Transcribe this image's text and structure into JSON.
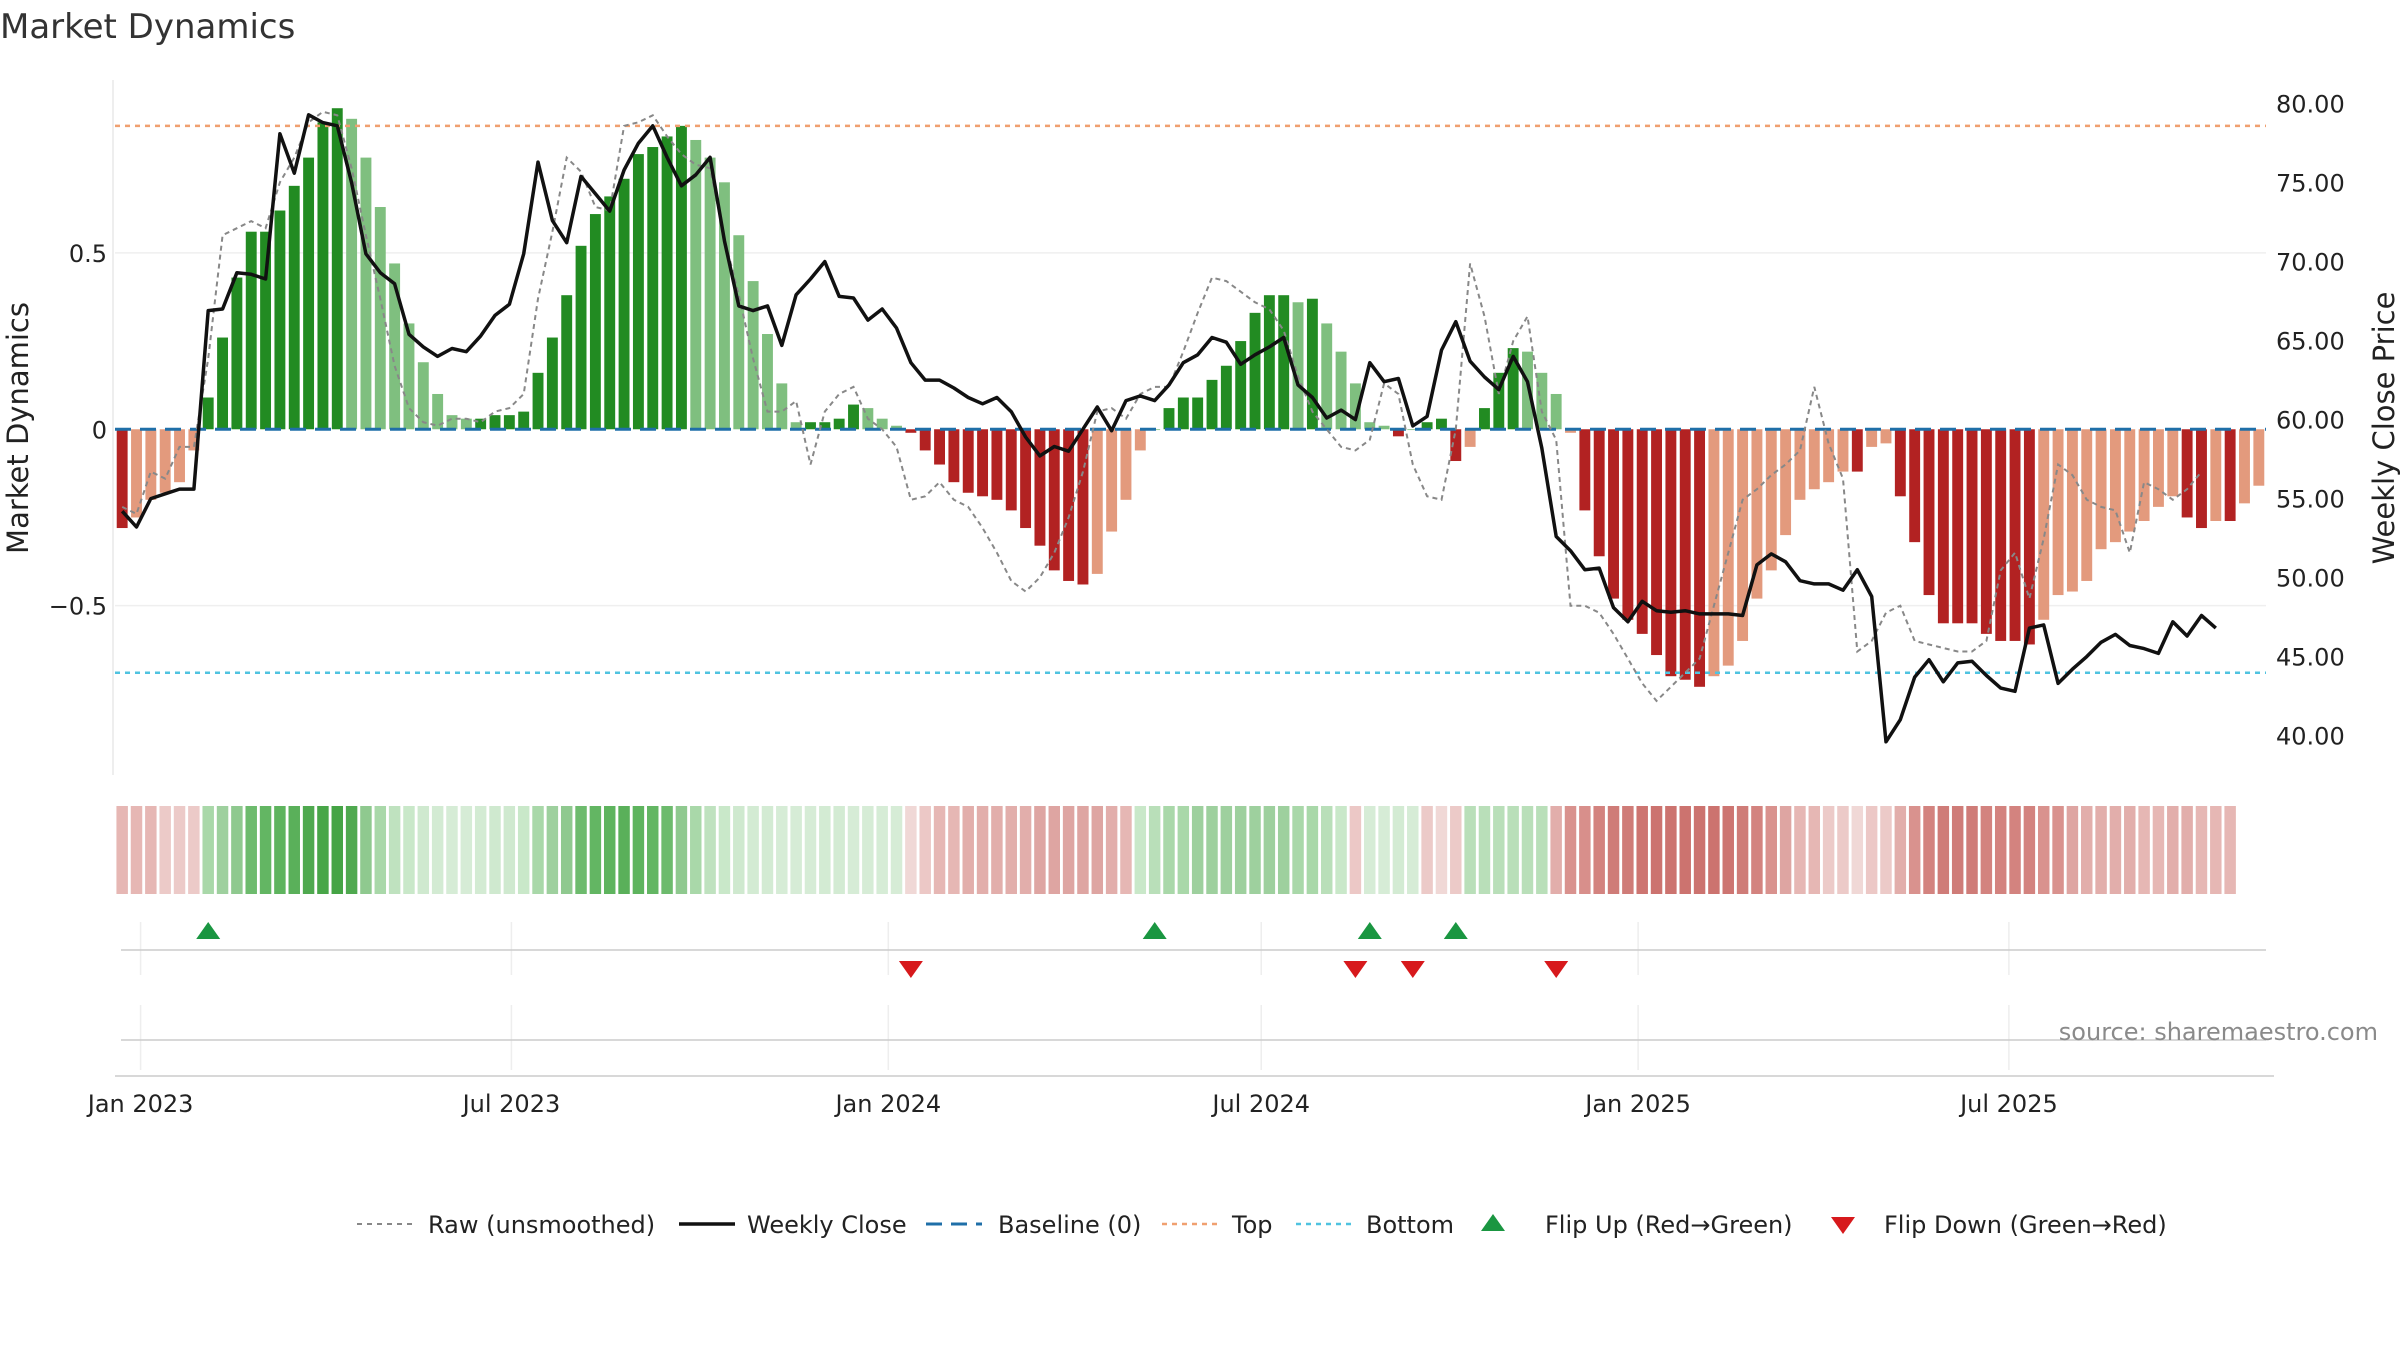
{
  "title": "Market Dynamics",
  "source": "source: sharemaestro.com",
  "axes": {
    "left_label": "Market Dynamics",
    "right_label": "Weekly Close Price",
    "left_ticks": [
      "0.5",
      "0",
      "−0.5"
    ],
    "left_tick_values": [
      0.5,
      0,
      -0.5
    ],
    "right_ticks": [
      "80.00",
      "75.00",
      "70.00",
      "65.00",
      "60.00",
      "55.00",
      "50.00",
      "45.00",
      "40.00"
    ],
    "right_tick_values": [
      80,
      75,
      70,
      65,
      60,
      55,
      50,
      45,
      40
    ],
    "date_ticks": [
      "Jan 2023",
      "Jul 2023",
      "Jan 2024",
      "Jul 2024",
      "Jan 2025",
      "Jul 2025"
    ]
  },
  "legend": {
    "raw": "Raw (unsmoothed)",
    "close": "Weekly Close",
    "baseline": "Baseline (0)",
    "top": "Top",
    "bottom": "Bottom",
    "flip_up": "Flip Up (Red→Green)",
    "flip_down": "Flip Down (Green→Red)"
  },
  "colors": {
    "green_strong": "#228b22",
    "green_light": "#7fbf7f",
    "red_strong": "#b22222",
    "red_light": "#e39a7d",
    "close": "#111111",
    "raw": "#888888",
    "baseline": "#1f6fa8",
    "top": "#f0a070",
    "bottom": "#4fc3e0",
    "flip_up": "#1a9641",
    "flip_down": "#d7191c"
  },
  "chart_data": {
    "type": "bar",
    "x_start": "2022-12-23",
    "x_step_days": 7,
    "top_level": 0.86,
    "bottom_level": -0.69,
    "baseline": 0,
    "left_ylim": [
      -0.98,
      0.99
    ],
    "right_ylim": [
      37.5,
      81.5
    ],
    "dynamics": [
      -0.28,
      -0.25,
      -0.2,
      -0.18,
      -0.15,
      -0.06,
      0.09,
      0.26,
      0.43,
      0.56,
      0.56,
      0.62,
      0.69,
      0.77,
      0.87,
      0.91,
      0.88,
      0.77,
      0.63,
      0.47,
      0.3,
      0.19,
      0.1,
      0.04,
      0.03,
      0.03,
      0.04,
      0.04,
      0.05,
      0.16,
      0.26,
      0.38,
      0.52,
      0.61,
      0.66,
      0.71,
      0.78,
      0.8,
      0.83,
      0.86,
      0.82,
      0.77,
      0.7,
      0.55,
      0.42,
      0.27,
      0.13,
      0.02,
      0.02,
      0.02,
      0.03,
      0.07,
      0.06,
      0.03,
      0.01,
      -0.01,
      -0.06,
      -0.1,
      -0.15,
      -0.18,
      -0.19,
      -0.2,
      -0.23,
      -0.28,
      -0.33,
      -0.4,
      -0.43,
      -0.44,
      -0.41,
      -0.29,
      -0.2,
      -0.06,
      0.0,
      0.06,
      0.09,
      0.09,
      0.14,
      0.18,
      0.25,
      0.33,
      0.38,
      0.38,
      0.36,
      0.37,
      0.3,
      0.22,
      0.13,
      0.02,
      0.01,
      -0.02,
      0.0,
      0.02,
      0.03,
      -0.09,
      -0.05,
      0.06,
      0.16,
      0.23,
      0.22,
      0.16,
      0.1,
      -0.01,
      -0.23,
      -0.36,
      -0.48,
      -0.54,
      -0.58,
      -0.64,
      -0.7,
      -0.71,
      -0.73,
      -0.7,
      -0.67,
      -0.6,
      -0.48,
      -0.4,
      -0.3,
      -0.2,
      -0.17,
      -0.15,
      -0.12,
      -0.12,
      -0.05,
      -0.04,
      -0.19,
      -0.32,
      -0.47,
      -0.55,
      -0.55,
      -0.55,
      -0.58,
      -0.6,
      -0.6,
      -0.61,
      -0.54,
      -0.47,
      -0.46,
      -0.43,
      -0.34,
      -0.32,
      -0.29,
      -0.26,
      -0.22,
      -0.19,
      -0.25,
      -0.28,
      -0.26,
      -0.26,
      -0.21,
      -0.16
    ],
    "raw": [
      -0.22,
      -0.24,
      -0.12,
      -0.14,
      -0.05,
      -0.05,
      0.2,
      0.55,
      0.57,
      0.59,
      0.57,
      0.7,
      0.77,
      0.87,
      0.9,
      0.89,
      0.74,
      0.55,
      0.37,
      0.18,
      0.06,
      0.02,
      0.01,
      0.03,
      0.03,
      0.02,
      0.05,
      0.06,
      0.1,
      0.37,
      0.56,
      0.77,
      0.73,
      0.63,
      0.62,
      0.86,
      0.87,
      0.89,
      0.83,
      0.78,
      0.75,
      0.74,
      0.54,
      0.38,
      0.2,
      0.05,
      0.05,
      0.08,
      -0.1,
      0.05,
      0.1,
      0.12,
      0.03,
      0.0,
      -0.05,
      -0.2,
      -0.19,
      -0.15,
      -0.2,
      -0.22,
      -0.28,
      -0.35,
      -0.43,
      -0.46,
      -0.42,
      -0.35,
      -0.25,
      -0.12,
      0.05,
      0.06,
      0.03,
      0.1,
      0.12,
      0.12,
      0.22,
      0.33,
      0.43,
      0.42,
      0.39,
      0.36,
      0.34,
      0.28,
      0.15,
      0.05,
      0.0,
      -0.05,
      -0.06,
      -0.03,
      0.13,
      0.1,
      -0.1,
      -0.19,
      -0.2,
      0.0,
      0.47,
      0.32,
      0.1,
      0.25,
      0.32,
      0.05,
      -0.03,
      -0.5,
      -0.5,
      -0.52,
      -0.58,
      -0.65,
      -0.72,
      -0.77,
      -0.73,
      -0.69,
      -0.65,
      -0.5,
      -0.35,
      -0.2,
      -0.17,
      -0.13,
      -0.1,
      -0.06,
      0.12,
      -0.04,
      -0.14,
      -0.63,
      -0.6,
      -0.52,
      -0.5,
      -0.6,
      -0.61,
      -0.62,
      -0.63,
      -0.63,
      -0.6,
      -0.4,
      -0.35,
      -0.48,
      -0.31,
      -0.1,
      -0.13,
      -0.2,
      -0.22,
      -0.23,
      -0.35,
      -0.15,
      -0.17,
      -0.2,
      -0.17,
      -0.12
    ],
    "close": [
      54.2,
      53.2,
      55.0,
      55.3,
      55.6,
      55.6,
      66.9,
      67.0,
      69.3,
      69.2,
      68.9,
      78.1,
      75.6,
      79.3,
      78.8,
      78.6,
      75.0,
      70.5,
      69.3,
      68.6,
      65.4,
      64.6,
      64.0,
      64.5,
      64.3,
      65.3,
      66.6,
      67.3,
      70.5,
      76.3,
      72.6,
      71.2,
      75.4,
      74.3,
      73.2,
      75.8,
      77.5,
      78.6,
      76.6,
      74.8,
      75.5,
      76.6,
      71.3,
      67.2,
      66.9,
      67.2,
      64.7,
      67.9,
      68.9,
      70.0,
      67.8,
      67.7,
      66.3,
      67.0,
      65.8,
      63.6,
      62.5,
      62.5,
      62.0,
      61.4,
      61.0,
      61.4,
      60.5,
      58.9,
      57.7,
      58.3,
      58.0,
      59.4,
      60.8,
      59.3,
      61.2,
      61.5,
      61.2,
      62.2,
      63.6,
      64.1,
      65.2,
      64.9,
      63.5,
      64.1,
      64.6,
      65.2,
      62.2,
      61.4,
      60.1,
      60.6,
      60.0,
      63.6,
      62.4,
      62.6,
      59.6,
      60.2,
      64.4,
      66.2,
      63.7,
      62.7,
      61.9,
      64.0,
      62.4,
      58.2,
      52.6,
      51.7,
      50.5,
      50.6,
      48.1,
      47.2,
      48.5,
      47.9,
      47.8,
      47.9,
      47.7,
      47.7,
      47.7,
      47.6,
      50.8,
      51.5,
      51.0,
      49.8,
      49.6,
      49.6,
      49.2,
      50.5,
      48.8,
      39.6,
      41.0,
      43.7,
      44.8,
      43.4,
      44.6,
      44.7,
      43.8,
      43.0,
      42.8,
      46.8,
      47.0,
      43.3,
      44.2,
      45.0,
      45.9,
      46.4,
      45.7,
      45.5,
      45.2,
      47.2,
      46.3,
      47.6,
      46.8
    ],
    "strip_colors": [
      "#e6b7b4",
      "#e6b7b4",
      "#e6b7b4",
      "#eccac8",
      "#eccac8",
      "#eccac8",
      "#a9d8a9",
      "#9ed09e",
      "#8fc98f",
      "#6dbb6d",
      "#63b663",
      "#5eb45e",
      "#5ab05a",
      "#4fa94f",
      "#48a648",
      "#45a445",
      "#4fa94f",
      "#8fc98f",
      "#a9d8a9",
      "#bfe2bf",
      "#c9e8c9",
      "#cfe9cf",
      "#d3ebd3",
      "#d6ecd6",
      "#d6ecd6",
      "#d3ebd3",
      "#cfe9cf",
      "#cfe9cf",
      "#c9e8c9",
      "#a9d8a9",
      "#9ed09e",
      "#8fc98f",
      "#6dbb6d",
      "#63b663",
      "#5eb45e",
      "#5ab05a",
      "#5eb45e",
      "#63b663",
      "#6dbb6d",
      "#8fc98f",
      "#a9d8a9",
      "#bfe2bf",
      "#c9e8c9",
      "#cfe9cf",
      "#d3ebd3",
      "#d3ebd3",
      "#d6ecd6",
      "#d6ecd6",
      "#d6ecd6",
      "#d3ebd3",
      "#d3ebd3",
      "#d6ecd6",
      "#d6ecd6",
      "#d6ecd6",
      "#d6ecd6",
      "#f0d8d6",
      "#ecc8c6",
      "#e6b7b4",
      "#e6b7b4",
      "#e2aeab",
      "#e2aeab",
      "#e2aeab",
      "#e2aeab",
      "#e2aeab",
      "#dea5a2",
      "#dea5a2",
      "#dea5a2",
      "#dea5a2",
      "#dea5a2",
      "#e2aeab",
      "#e6b7b4",
      "#c9e8c9",
      "#b9dfb9",
      "#a9d8a9",
      "#a9d8a9",
      "#9ed09e",
      "#9ed09e",
      "#9ed09e",
      "#9ed09e",
      "#9ed09e",
      "#9ed09e",
      "#9ed09e",
      "#a9d8a9",
      "#a9d8a9",
      "#b9dfb9",
      "#c9e8c9",
      "#ecc8c6",
      "#d6ecd6",
      "#d6ecd6",
      "#d3ebd3",
      "#d6ecd6",
      "#eccac8",
      "#f0d8d6",
      "#eccac8",
      "#b9dfb9",
      "#b9dfb9",
      "#b9dfb9",
      "#b9dfb9",
      "#b9dfb9",
      "#b9dfb9",
      "#e2aeab",
      "#d9928e",
      "#d88f8b",
      "#d3837f",
      "#cf7c78",
      "#cf7c78",
      "#cd7571",
      "#cc736f",
      "#cc736f",
      "#cc736f",
      "#cc736f",
      "#cc736f",
      "#cd7571",
      "#cf7c78",
      "#d3837f",
      "#d9928e",
      "#dea5a2",
      "#e6b7b4",
      "#e6b7b4",
      "#eccac8",
      "#eccac8",
      "#f0d8d6",
      "#ecc8c6",
      "#eccac8",
      "#e2aeab",
      "#d9928e",
      "#d3837f",
      "#cf7c78",
      "#cf7c78",
      "#cf7c78",
      "#d3837f",
      "#d3837f",
      "#d3837f",
      "#d3837f",
      "#d9928e",
      "#d9928e",
      "#dea5a2",
      "#e2aeab",
      "#e2aeab",
      "#e2aeab",
      "#e2aeab",
      "#e6b7b4",
      "#e6b7b4",
      "#e2aeab",
      "#e2aeab",
      "#e6b7b4",
      "#e6b7b4",
      "#e6b7b4"
    ],
    "flip_up_weeks": [
      6,
      72,
      87,
      93
    ],
    "flip_down_weeks": [
      55,
      86,
      90,
      100
    ]
  }
}
